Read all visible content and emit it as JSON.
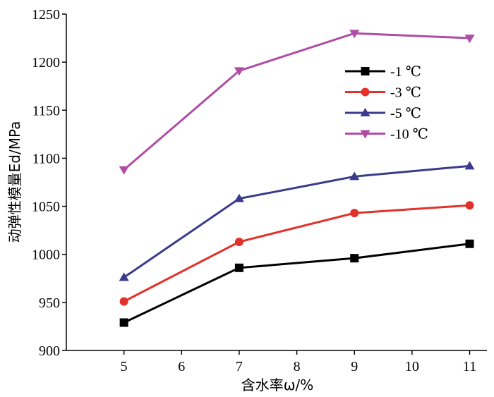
{
  "chart_data": {
    "type": "line",
    "xlabel": "含水率ω/%",
    "ylabel": "动弹性模量Ed/MPa",
    "x": [
      5,
      7,
      9,
      11
    ],
    "xlim": [
      4,
      11.3
    ],
    "ylim": [
      900,
      1250
    ],
    "xticks": [
      "5",
      "6",
      "7",
      "8",
      "9",
      "10",
      "11"
    ],
    "yticks": [
      "900",
      "950",
      "1000",
      "1050",
      "1100",
      "1150",
      "1200",
      "1250"
    ],
    "grid": false,
    "legend_position": "top-right",
    "series": [
      {
        "name": "-1 ℃",
        "values": [
          929,
          986,
          996,
          1011
        ],
        "color": "#000000",
        "marker": "square"
      },
      {
        "name": "-3 ℃",
        "values": [
          951,
          1013,
          1043,
          1051
        ],
        "color": "#e2312a",
        "marker": "circle"
      },
      {
        "name": "-5 ℃",
        "values": [
          976,
          1058,
          1081,
          1092
        ],
        "color": "#3a3b8c",
        "marker": "triangle-up"
      },
      {
        "name": "-10 ℃",
        "values": [
          1088,
          1191,
          1230,
          1225
        ],
        "color": "#b04ba6",
        "marker": "triangle-down"
      }
    ]
  }
}
